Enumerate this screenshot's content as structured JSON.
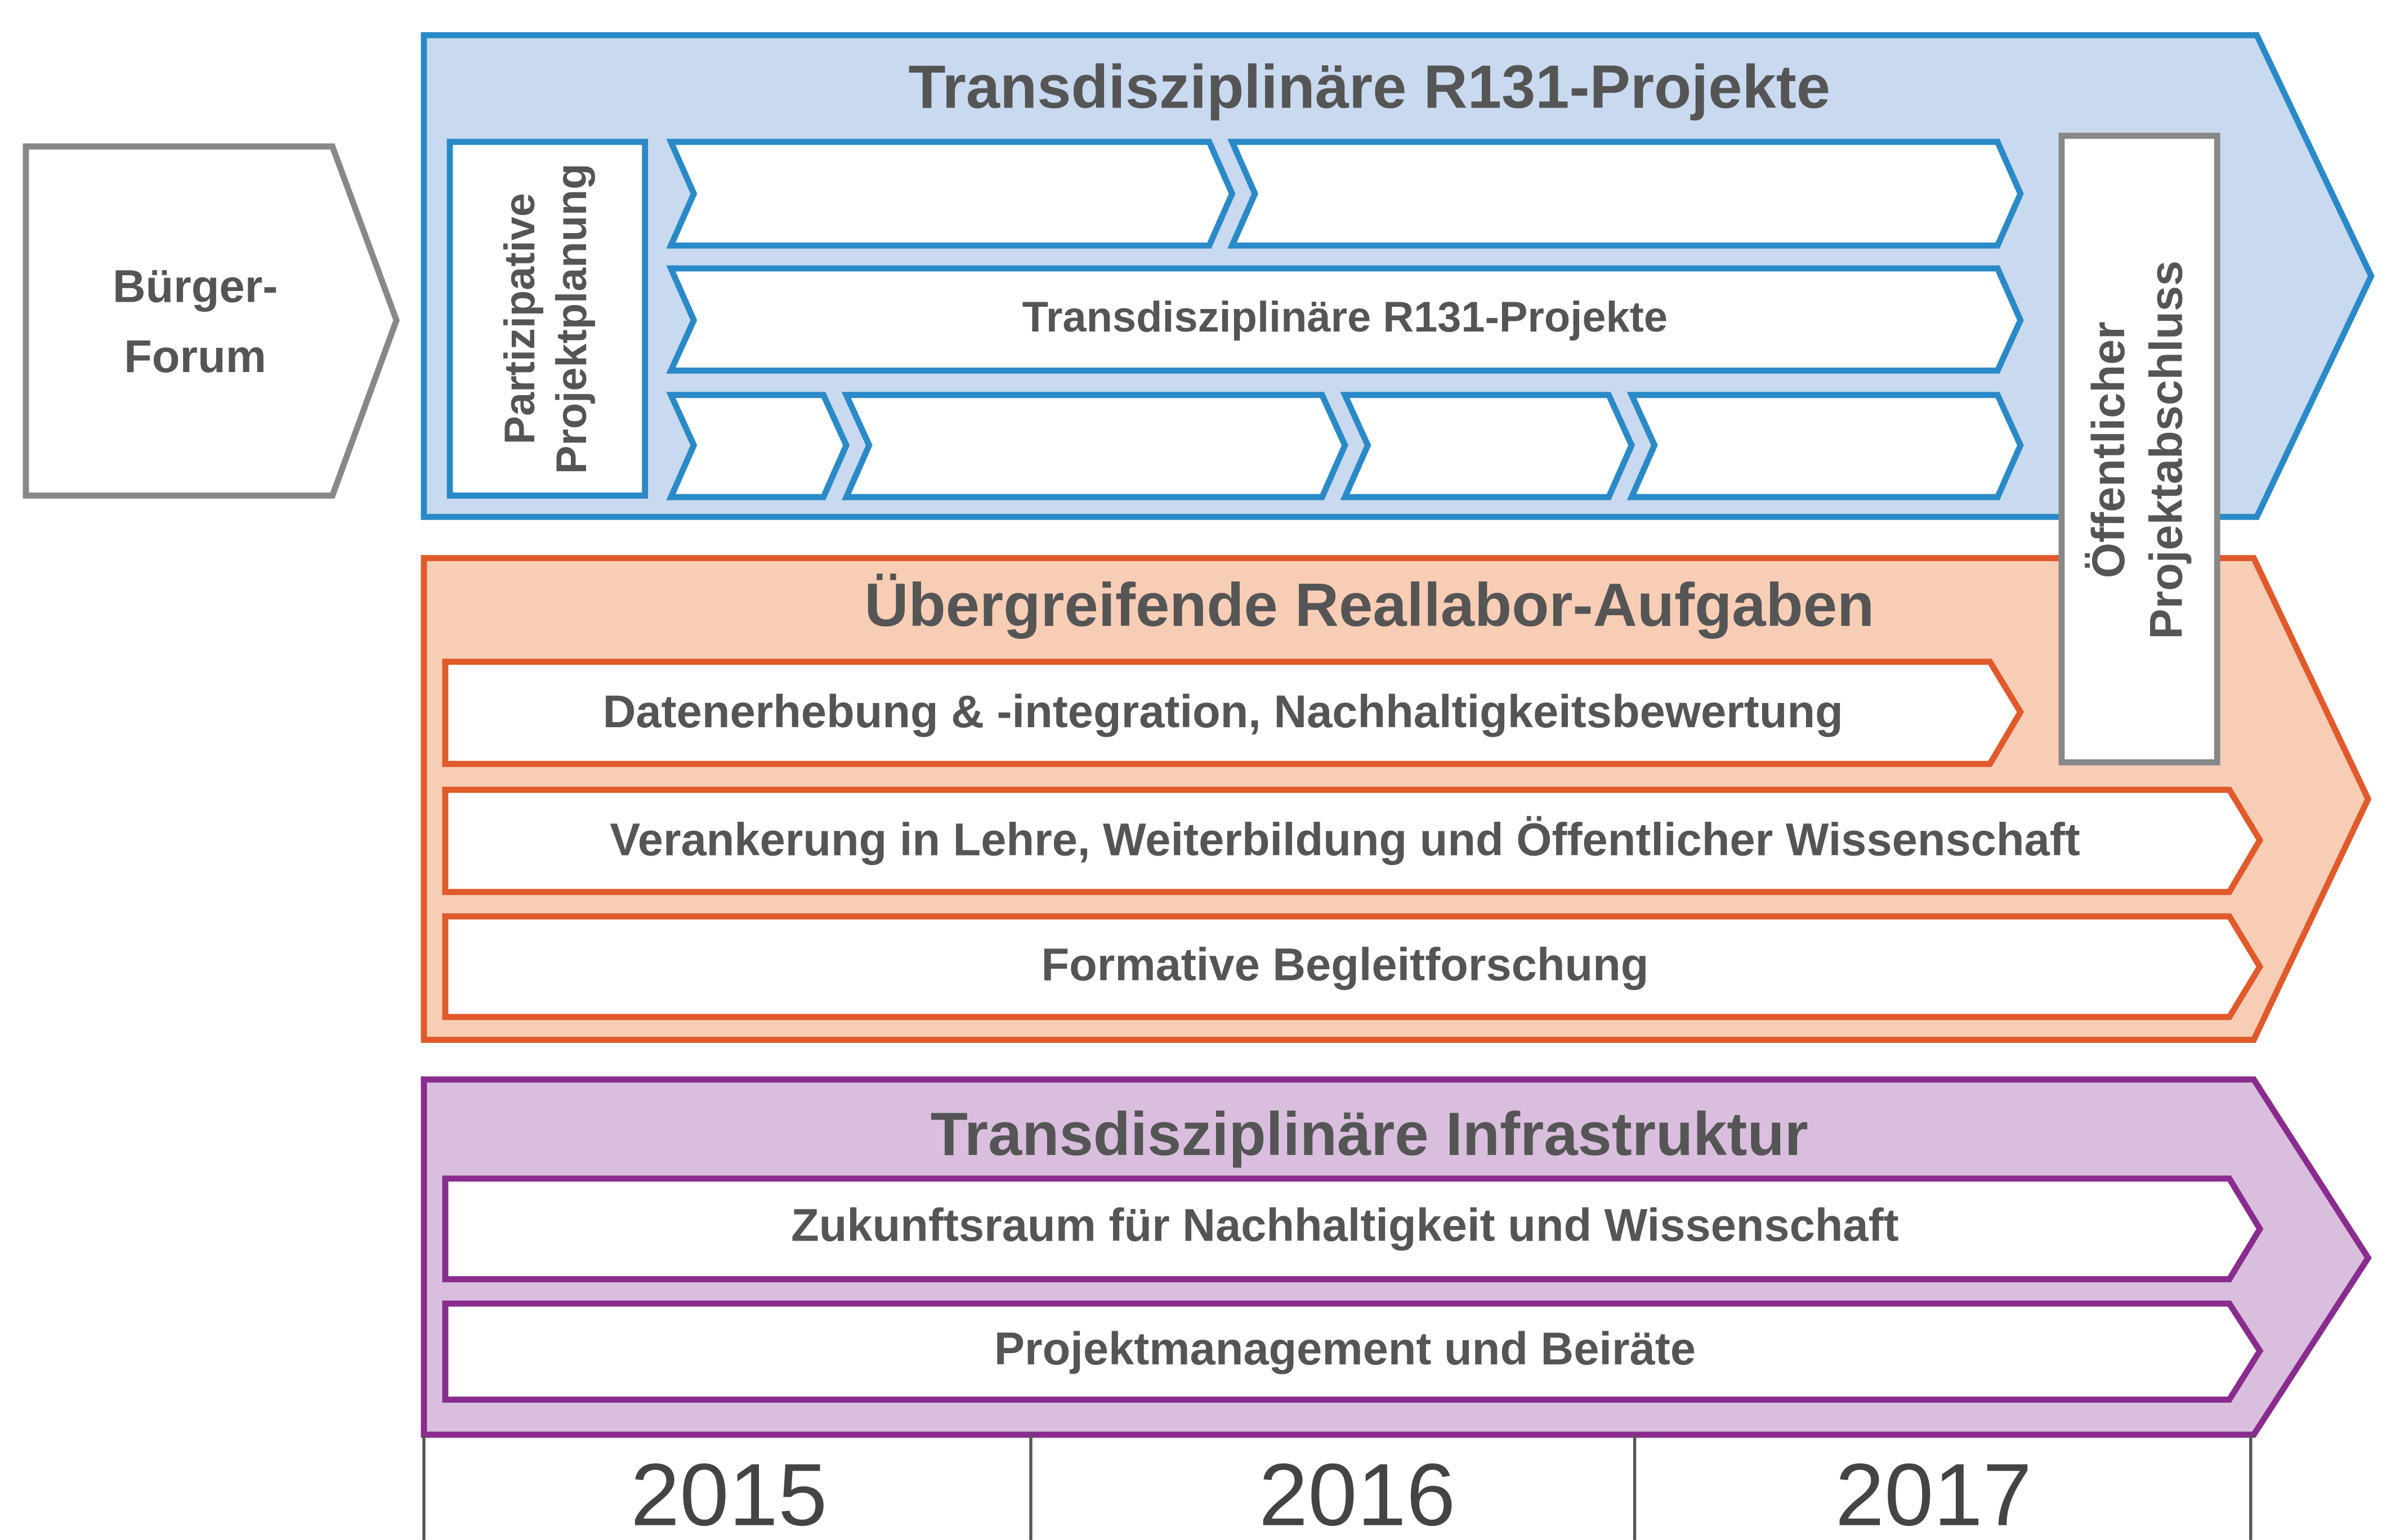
{
  "buerger_forum": {
    "lines": [
      "Bürger-",
      "Forum"
    ]
  },
  "projects": {
    "title": "Transdisziplinäre R131-Projekte",
    "planning": [
      "Partizipative",
      "Projektplanung"
    ],
    "row_label": "Transdisziplinäre R131-Projekte",
    "closing": [
      "Öffentlicher",
      "Projektabschluss"
    ]
  },
  "tasks": {
    "title": "Übergreifende Reallabor-Aufgaben",
    "items": [
      "Datenerhebung & -integration, Nachhaltigkeitsbewertung",
      "Verankerung in Lehre, Weiterbildung und Öffentlicher Wissenschaft",
      "Formative Begleitforschung"
    ]
  },
  "infrastructure": {
    "title": "Transdisziplinäre Infrastruktur",
    "items": [
      "Zukunftsraum für Nachhaltigkeit und Wissenschaft",
      "Projektmanagement und Beiräte"
    ]
  },
  "years": [
    "2015",
    "2016",
    "2017"
  ]
}
